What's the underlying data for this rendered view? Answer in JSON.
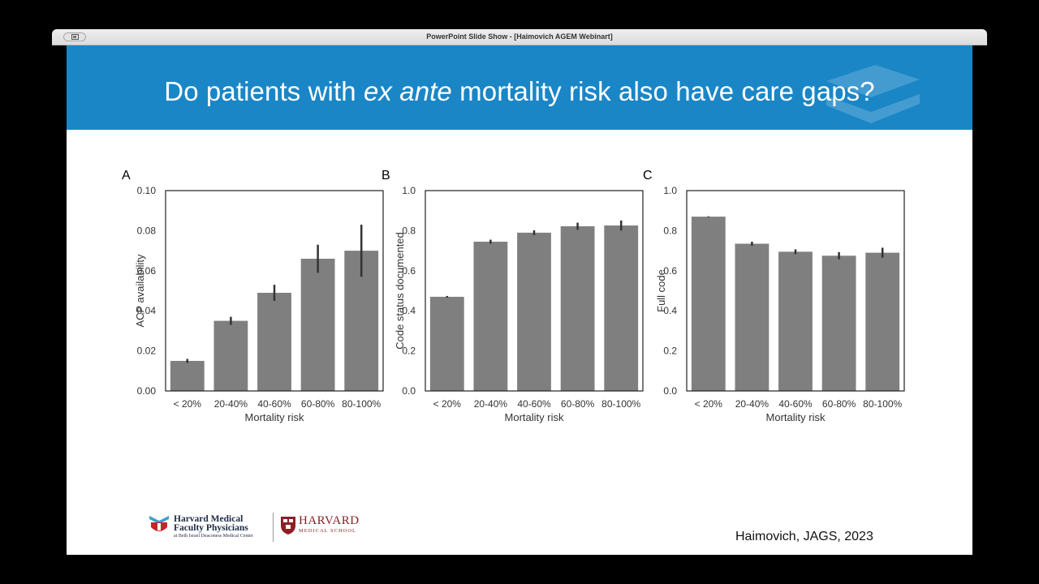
{
  "window": {
    "title": "PowerPoint Slide Show - [Haimovich AGEM Webinart]"
  },
  "slide": {
    "title_before": "Do patients with ",
    "title_italic": "ex ante",
    "title_after": " mortality risk also have care gaps?",
    "citation": "Haimovich, JAGS, 2023",
    "banner_color": "#1a86c6",
    "bar_color": "#7f7f7f"
  },
  "logos": {
    "hmfp_line1": "Harvard Medical",
    "hmfp_line2": "Faculty Physicians",
    "hmfp_line3": "at Beth Israel Deaconess Medical Center",
    "hms_line1": "HARVARD",
    "hms_line2": "MEDICAL SCHOOL"
  },
  "chart_data": [
    {
      "type": "bar",
      "panel": "A",
      "categories": [
        "< 20%",
        "20-40%",
        "40-60%",
        "60-80%",
        "80-100%"
      ],
      "values": [
        0.015,
        0.035,
        0.049,
        0.066,
        0.07
      ],
      "error": [
        0.001,
        0.002,
        0.004,
        0.007,
        0.013
      ],
      "xlabel": "Mortality risk",
      "ylabel": "ACP availability",
      "ylim": [
        0,
        0.1
      ],
      "yticks": [
        "0.00",
        "0.02",
        "0.04",
        "0.06",
        "0.08",
        "0.10"
      ]
    },
    {
      "type": "bar",
      "panel": "B",
      "categories": [
        "< 20%",
        "20-40%",
        "40-60%",
        "60-80%",
        "80-100%"
      ],
      "values": [
        0.47,
        0.745,
        0.79,
        0.822,
        0.826
      ],
      "error": [
        0.004,
        0.01,
        0.012,
        0.018,
        0.025
      ],
      "xlabel": "Mortality risk",
      "ylabel": "Code status documented",
      "ylim": [
        0,
        1.0
      ],
      "yticks": [
        "0.0",
        "0.2",
        "0.4",
        "0.6",
        "0.8",
        "1.0"
      ]
    },
    {
      "type": "bar",
      "panel": "C",
      "categories": [
        "< 20%",
        "20-40%",
        "40-60%",
        "60-80%",
        "80-100%"
      ],
      "values": [
        0.87,
        0.735,
        0.695,
        0.675,
        0.69
      ],
      "error": [
        0.002,
        0.01,
        0.012,
        0.018,
        0.025
      ],
      "xlabel": "Mortality risk",
      "ylabel": "Full code",
      "ylim": [
        0,
        1.0
      ],
      "yticks": [
        "0.0",
        "0.2",
        "0.4",
        "0.6",
        "0.8",
        "1.0"
      ]
    }
  ]
}
